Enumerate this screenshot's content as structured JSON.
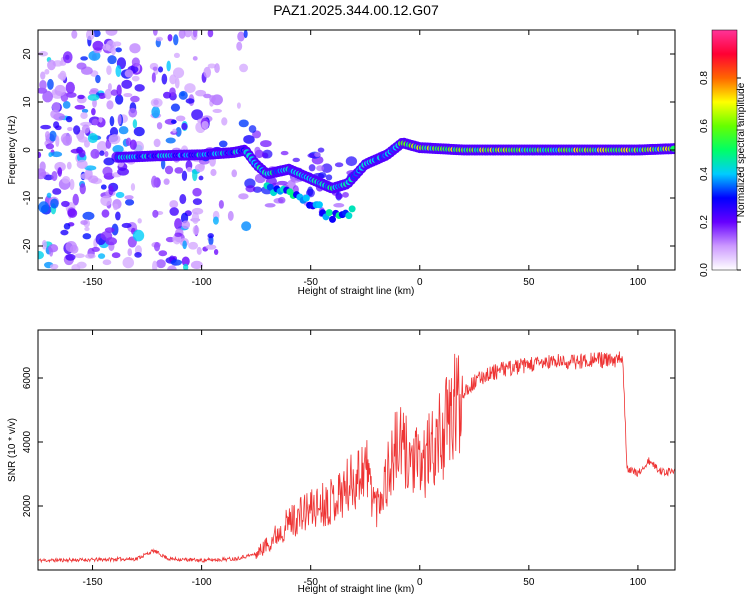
{
  "title": "PAZ1.2025.344.00.12.G07",
  "chart_data": [
    {
      "type": "heatmap",
      "name": "spectrogram",
      "xlabel": "Height of straight line (km)",
      "ylabel": "Frequency (Hz)",
      "xlim": [
        -175,
        117
      ],
      "ylim": [
        -25,
        25
      ],
      "xticks": [
        -150,
        -100,
        -50,
        0,
        50,
        100
      ],
      "yticks": [
        -20,
        -10,
        0,
        10,
        20
      ],
      "grid": false,
      "ridge": [
        {
          "x": -135,
          "y": -1.5
        },
        {
          "x": -120,
          "y": -1.2
        },
        {
          "x": -100,
          "y": -1.0
        },
        {
          "x": -85,
          "y": -0.5
        },
        {
          "x": -80,
          "y": 0
        },
        {
          "x": -75,
          "y": -3
        },
        {
          "x": -70,
          "y": -5
        },
        {
          "x": -60,
          "y": -4
        },
        {
          "x": -50,
          "y": -6
        },
        {
          "x": -40,
          "y": -8
        },
        {
          "x": -33,
          "y": -7
        },
        {
          "x": -25,
          "y": -3
        },
        {
          "x": -15,
          "y": -1
        },
        {
          "x": -8,
          "y": 1.5
        },
        {
          "x": 0,
          "y": 0.5
        },
        {
          "x": 20,
          "y": 0
        },
        {
          "x": 50,
          "y": 0
        },
        {
          "x": 80,
          "y": 0
        },
        {
          "x": 100,
          "y": 0
        },
        {
          "x": 117,
          "y": 0.3
        }
      ],
      "colorbar": {
        "label": "Normalized spectral amplitude",
        "range": [
          0,
          1
        ],
        "ticks": [
          "0.0",
          "0.2",
          "0.4",
          "0.6",
          "0.8"
        ],
        "colors": [
          "#ffffff",
          "#cc99ff",
          "#6600ff",
          "#0000ff",
          "#00ccff",
          "#00ff66",
          "#66ff00",
          "#ffff00",
          "#ff6600",
          "#ff0033",
          "#ff3399"
        ]
      }
    },
    {
      "type": "line",
      "name": "snr",
      "xlabel": "Height of straight line (km)",
      "ylabel": "SNR (10 * v/v)",
      "xlim": [
        -175,
        117
      ],
      "ylim": [
        0,
        7500
      ],
      "xticks": [
        -150,
        -100,
        -50,
        0,
        50,
        100
      ],
      "yticks": [
        2000,
        4000,
        6000
      ],
      "grid": false,
      "series": [
        {
          "name": "SNR",
          "color": "#ee3333",
          "x": [
            -175,
            -150,
            -130,
            -122,
            -115,
            -100,
            -85,
            -75,
            -70,
            -60,
            -50,
            -40,
            -30,
            -25,
            -20,
            -10,
            0,
            10,
            20,
            30,
            40,
            50,
            60,
            70,
            80,
            90,
            93,
            95,
            100,
            105,
            110,
            117
          ],
          "y": [
            300,
            320,
            350,
            600,
            350,
            300,
            350,
            500,
            800,
            1500,
            1900,
            2200,
            2800,
            3300,
            2000,
            3900,
            3200,
            4200,
            5600,
            6100,
            6300,
            6400,
            6500,
            6500,
            6600,
            6500,
            6700,
            3200,
            3000,
            3400,
            3100,
            3050
          ]
        }
      ]
    }
  ]
}
